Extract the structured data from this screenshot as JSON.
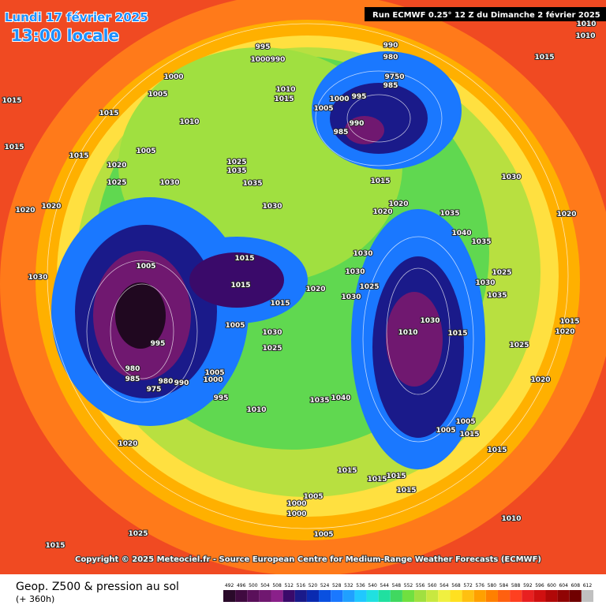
{
  "header": {
    "date": "Lundi 17 février 2025",
    "time": "13:00 locale",
    "run": "Run ECMWF 0.25° 12 Z du Dimanche 2 février 2025"
  },
  "copyright": "Copyright © 2025 Meteociel.fr - Source European Centre for Medium-Range Weather Forecasts (ECMWF)",
  "legend": {
    "title": "Geop. Z500 & pression au sol",
    "subtitle": "(+ 360h)",
    "values": [
      492,
      496,
      500,
      504,
      508,
      512,
      516,
      520,
      524,
      528,
      532,
      536,
      540,
      544,
      548,
      552,
      556,
      560,
      564,
      568,
      572,
      576,
      580,
      584,
      588,
      592,
      596,
      600,
      604,
      608,
      612
    ],
    "colors": [
      "#2a0a2a",
      "#400a40",
      "#5a105a",
      "#701870",
      "#8a208a",
      "#3a0a6a",
      "#1a1a8a",
      "#0a2ab0",
      "#0a50e0",
      "#1a78ff",
      "#20a0ff",
      "#20c8ff",
      "#20e0e0",
      "#20e0a0",
      "#40d860",
      "#70e040",
      "#a0e040",
      "#c8e840",
      "#f0f040",
      "#ffe020",
      "#ffc010",
      "#ffa000",
      "#ff8000",
      "#ff6010",
      "#ff4020",
      "#e82020",
      "#d01010",
      "#b00808",
      "#900404",
      "#700000",
      "#c0c0c0"
    ]
  },
  "isobars": [
    995,
    1000,
    990,
    990,
    980,
    9750,
    985,
    1000,
    1005,
    1015,
    1015,
    1010,
    1010,
    1015,
    1005,
    1000,
    995,
    985,
    990,
    1005,
    1015,
    1020,
    1025,
    1030,
    1025,
    1035,
    1035,
    1030,
    1015,
    1020,
    1020,
    1035,
    1040,
    1030,
    1015,
    1010,
    1010,
    1005,
    1015,
    1015,
    1015,
    1020,
    1030,
    1030,
    1025,
    1030,
    1005,
    995,
    980,
    985,
    975,
    980,
    990,
    1005,
    1000,
    995,
    1010,
    1030,
    1025,
    1035,
    1040,
    1010,
    1030,
    1015,
    1005,
    1005,
    1015,
    1015,
    1015,
    1015,
    1015,
    1015,
    1005,
    1000,
    1000,
    1005,
    1020,
    1025,
    1015,
    1010,
    1020,
    1025,
    1030,
    1035,
    1025,
    1035,
    1020,
    1015,
    1020,
    1030,
    1020,
    1015,
    1020
  ]
}
